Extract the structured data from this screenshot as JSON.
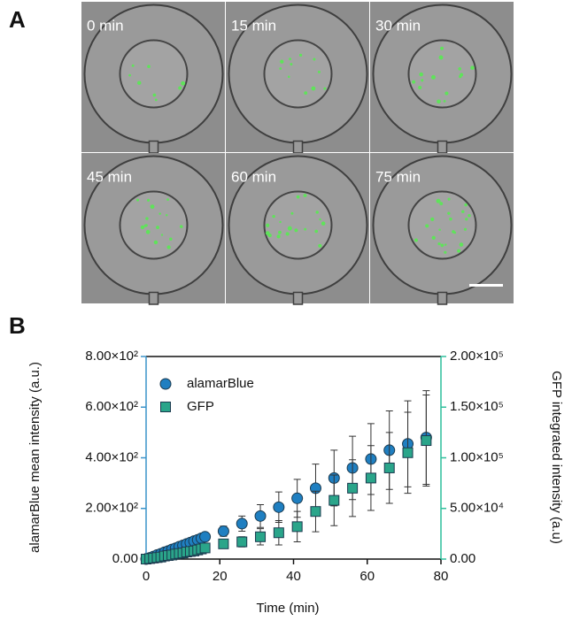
{
  "panel_a": {
    "label": "A",
    "frames": [
      "0 min",
      "15 min",
      "30 min",
      "45 min",
      "60 min",
      "75 min"
    ]
  },
  "panel_b_label": "B",
  "chart_data": {
    "type": "scatter",
    "x_label": "Time (min)",
    "y_label": "alamarBlue mean intensity (a.u.)",
    "y2_label": "GFP integrated intensity (a.u)",
    "x": [
      0,
      1,
      2,
      3,
      4,
      5,
      6,
      7,
      8,
      9,
      10,
      11,
      12,
      13,
      14,
      15,
      16,
      21,
      26,
      31,
      36,
      41,
      46,
      51,
      56,
      61,
      66,
      71,
      76
    ],
    "xlim": [
      0,
      80
    ],
    "xticks": [
      0,
      20,
      40,
      60,
      80
    ],
    "ylim": [
      0,
      800
    ],
    "yticks": [
      {
        "value": 0,
        "label": "0.00"
      },
      {
        "value": 200,
        "label": "2.00×10²"
      },
      {
        "value": 400,
        "label": "4.00×10²"
      },
      {
        "value": 600,
        "label": "6.00×10²"
      },
      {
        "value": 800,
        "label": "8.00×10²"
      }
    ],
    "y2lim": [
      0,
      200000
    ],
    "y2ticks": [
      {
        "value": 0,
        "label": "0.00"
      },
      {
        "value": 50000,
        "label": "5.00×10⁴"
      },
      {
        "value": 100000,
        "label": "1.00×10⁵"
      },
      {
        "value": 150000,
        "label": "1.50×10⁵"
      },
      {
        "value": 200000,
        "label": "2.00×10⁵"
      }
    ],
    "y_axis_color": "#3a93c9",
    "y2_axis_color": "#2fbf9c",
    "legend": "upper left",
    "series": [
      {
        "name": "alamarBlue",
        "color": "#1f7fc1",
        "marker": "circle",
        "values": [
          0,
          5,
          10,
          16,
          21,
          27,
          32,
          38,
          43,
          49,
          54,
          60,
          65,
          71,
          76,
          82,
          88,
          110,
          140,
          170,
          205,
          240,
          280,
          320,
          360,
          395,
          430,
          455,
          480
        ],
        "errors": [
          0,
          1,
          2,
          3,
          3,
          4,
          5,
          6,
          6,
          7,
          8,
          9,
          9,
          10,
          11,
          12,
          12,
          20,
          30,
          45,
          60,
          75,
          95,
          110,
          125,
          140,
          155,
          170,
          185
        ]
      },
      {
        "name": "GFP",
        "color": "#2aa58a",
        "marker": "square",
        "axis": "y2",
        "values": [
          0,
          500,
          1000,
          1500,
          2000,
          3000,
          3500,
          4000,
          5000,
          5500,
          6000,
          7000,
          7500,
          8000,
          9000,
          10000,
          11000,
          15000,
          17000,
          22000,
          26000,
          32000,
          47000,
          58000,
          70000,
          80000,
          90000,
          105000,
          117000
        ],
        "errors": [
          0,
          200,
          400,
          500,
          600,
          800,
          900,
          1000,
          1200,
          1300,
          1500,
          1600,
          1800,
          2000,
          2200,
          2500,
          2800,
          4000,
          5000,
          8000,
          12000,
          15000,
          20000,
          25000,
          28000,
          32000,
          35000,
          40000,
          45000
        ]
      }
    ]
  }
}
